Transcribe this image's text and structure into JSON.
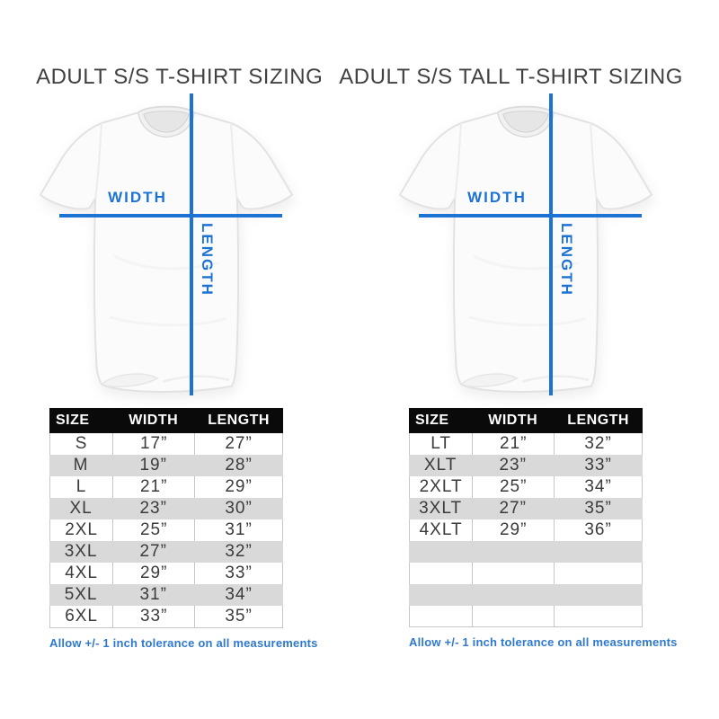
{
  "colors": {
    "accent": "#1d73d4",
    "note-blue": "#2e79cf",
    "header-bg": "#0a0a0a",
    "stripe": "#d9d9d9",
    "grid": "#c6c6c6",
    "ink": "#3b3b3b",
    "title-ink": "#414141"
  },
  "panels": [
    {
      "title": "ADULT S/S T-SHIRT SIZING",
      "width_label": "WIDTH",
      "length_label": "LENGTH",
      "table": {
        "headers": [
          "SIZE",
          "WIDTH",
          "LENGTH"
        ],
        "rows": [
          [
            "S",
            "17”",
            "27”"
          ],
          [
            "M",
            "19”",
            "28”"
          ],
          [
            "L",
            "21”",
            "29”"
          ],
          [
            "XL",
            "23”",
            "30”"
          ],
          [
            "2XL",
            "25”",
            "31”"
          ],
          [
            "3XL",
            "27”",
            "32”"
          ],
          [
            "4XL",
            "29”",
            "33”"
          ],
          [
            "5XL",
            "31”",
            "34”"
          ],
          [
            "6XL",
            "33”",
            "35”"
          ]
        ]
      },
      "note": "Allow +/- 1 inch tolerance on all measurements"
    },
    {
      "title": "ADULT S/S TALL T-SHIRT SIZING",
      "width_label": "WIDTH",
      "length_label": "LENGTH",
      "table": {
        "headers": [
          "SIZE",
          "WIDTH",
          "LENGTH"
        ],
        "rows": [
          [
            "LT",
            "21”",
            "32”"
          ],
          [
            "XLT",
            "23”",
            "33”"
          ],
          [
            "2XLT",
            "25”",
            "34”"
          ],
          [
            "3XLT",
            "27”",
            "35”"
          ],
          [
            "4XLT",
            "29”",
            "36”"
          ],
          [
            "",
            "",
            ""
          ],
          [
            "",
            "",
            ""
          ],
          [
            "",
            "",
            ""
          ],
          [
            "",
            "",
            ""
          ]
        ]
      },
      "note": "Allow +/- 1 inch tolerance on all measurements"
    }
  ]
}
